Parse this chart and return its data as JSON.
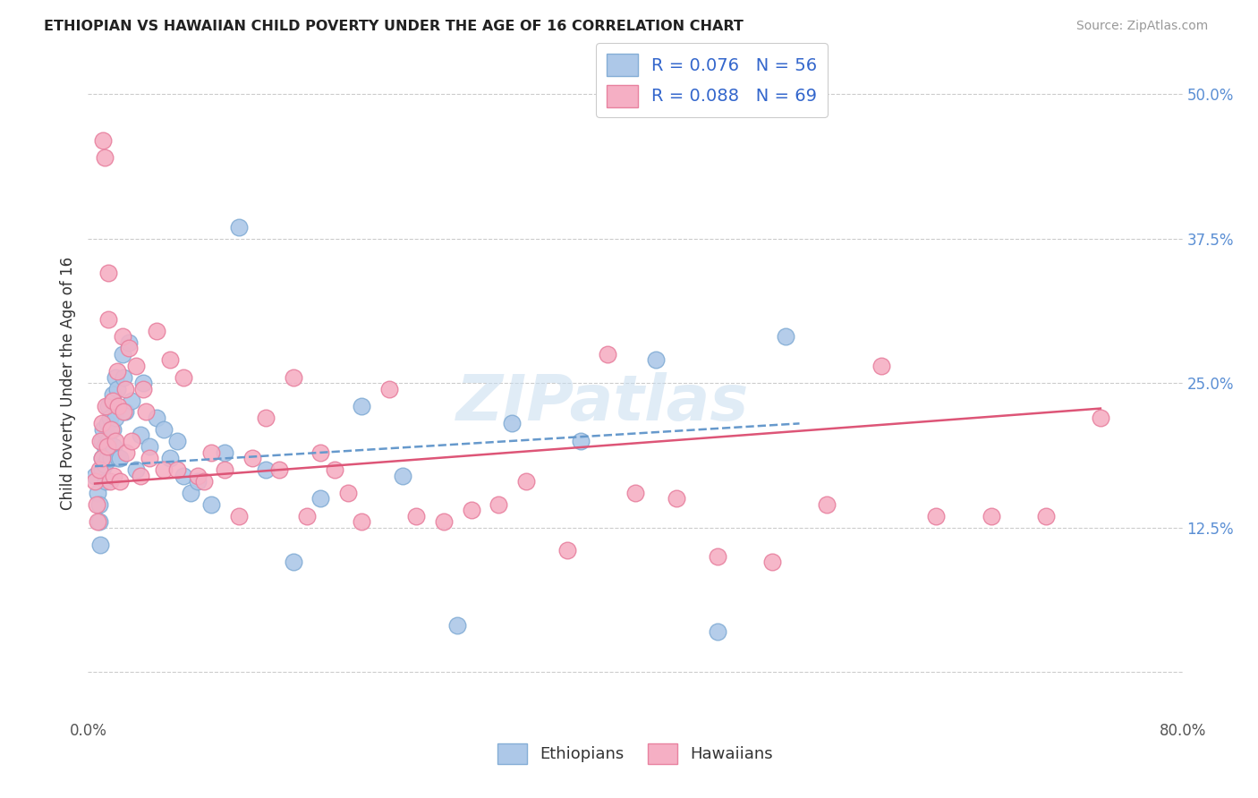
{
  "title": "ETHIOPIAN VS HAWAIIAN CHILD POVERTY UNDER THE AGE OF 16 CORRELATION CHART",
  "source": "Source: ZipAtlas.com",
  "ylabel": "Child Poverty Under the Age of 16",
  "xlim": [
    0.0,
    0.8
  ],
  "ylim": [
    -0.04,
    0.54
  ],
  "yticks": [
    0.0,
    0.125,
    0.25,
    0.375,
    0.5
  ],
  "yticklabels": [
    "",
    "12.5%",
    "25.0%",
    "37.5%",
    "50.0%"
  ],
  "xtick_left_label": "0.0%",
  "xtick_right_label": "80.0%",
  "ethiopian_color": "#adc8e8",
  "hawaiian_color": "#f5afc4",
  "ethiopian_edge": "#85aed6",
  "hawaiian_edge": "#e882a0",
  "trend_eth_color": "#6699cc",
  "trend_haw_color": "#dd5577",
  "R_eth": 0.076,
  "N_eth": 56,
  "R_haw": 0.088,
  "N_haw": 69,
  "watermark": "ZIPatlas",
  "background_color": "#ffffff",
  "grid_color": "#cccccc",
  "ethiopian_x": [
    0.005,
    0.007,
    0.008,
    0.008,
    0.009,
    0.01,
    0.01,
    0.01,
    0.011,
    0.012,
    0.012,
    0.013,
    0.014,
    0.014,
    0.015,
    0.015,
    0.016,
    0.017,
    0.018,
    0.018,
    0.019,
    0.02,
    0.02,
    0.021,
    0.022,
    0.023,
    0.025,
    0.026,
    0.027,
    0.03,
    0.032,
    0.035,
    0.038,
    0.04,
    0.045,
    0.05,
    0.055,
    0.06,
    0.065,
    0.07,
    0.075,
    0.08,
    0.09,
    0.1,
    0.11,
    0.13,
    0.15,
    0.17,
    0.2,
    0.23,
    0.27,
    0.31,
    0.36,
    0.415,
    0.46,
    0.51
  ],
  "ethiopian_y": [
    0.17,
    0.155,
    0.145,
    0.13,
    0.11,
    0.2,
    0.185,
    0.175,
    0.21,
    0.195,
    0.18,
    0.165,
    0.215,
    0.185,
    0.23,
    0.2,
    0.22,
    0.185,
    0.24,
    0.21,
    0.195,
    0.255,
    0.22,
    0.245,
    0.185,
    0.185,
    0.275,
    0.255,
    0.225,
    0.285,
    0.235,
    0.175,
    0.205,
    0.25,
    0.195,
    0.22,
    0.21,
    0.185,
    0.2,
    0.17,
    0.155,
    0.165,
    0.145,
    0.19,
    0.385,
    0.175,
    0.095,
    0.15,
    0.23,
    0.17,
    0.04,
    0.215,
    0.2,
    0.27,
    0.035,
    0.29
  ],
  "hawaiian_x": [
    0.005,
    0.006,
    0.007,
    0.008,
    0.009,
    0.01,
    0.01,
    0.011,
    0.012,
    0.013,
    0.014,
    0.015,
    0.015,
    0.016,
    0.017,
    0.018,
    0.019,
    0.02,
    0.021,
    0.022,
    0.023,
    0.025,
    0.026,
    0.027,
    0.028,
    0.03,
    0.032,
    0.035,
    0.038,
    0.04,
    0.042,
    0.045,
    0.05,
    0.055,
    0.06,
    0.065,
    0.07,
    0.08,
    0.085,
    0.09,
    0.1,
    0.11,
    0.12,
    0.13,
    0.14,
    0.15,
    0.16,
    0.17,
    0.18,
    0.19,
    0.2,
    0.22,
    0.24,
    0.26,
    0.28,
    0.3,
    0.32,
    0.35,
    0.38,
    0.4,
    0.43,
    0.46,
    0.5,
    0.54,
    0.58,
    0.62,
    0.66,
    0.7,
    0.74
  ],
  "hawaiian_y": [
    0.165,
    0.145,
    0.13,
    0.175,
    0.2,
    0.215,
    0.185,
    0.46,
    0.445,
    0.23,
    0.195,
    0.345,
    0.305,
    0.165,
    0.21,
    0.235,
    0.17,
    0.2,
    0.26,
    0.23,
    0.165,
    0.29,
    0.225,
    0.245,
    0.19,
    0.28,
    0.2,
    0.265,
    0.17,
    0.245,
    0.225,
    0.185,
    0.295,
    0.175,
    0.27,
    0.175,
    0.255,
    0.17,
    0.165,
    0.19,
    0.175,
    0.135,
    0.185,
    0.22,
    0.175,
    0.255,
    0.135,
    0.19,
    0.175,
    0.155,
    0.13,
    0.245,
    0.135,
    0.13,
    0.14,
    0.145,
    0.165,
    0.105,
    0.275,
    0.155,
    0.15,
    0.1,
    0.095,
    0.145,
    0.265,
    0.135,
    0.135,
    0.135,
    0.22
  ],
  "trend_eth_x0": 0.005,
  "trend_eth_x1": 0.52,
  "trend_eth_y0": 0.178,
  "trend_eth_y1": 0.215,
  "trend_haw_x0": 0.005,
  "trend_haw_x1": 0.74,
  "trend_haw_y0": 0.163,
  "trend_haw_y1": 0.228
}
